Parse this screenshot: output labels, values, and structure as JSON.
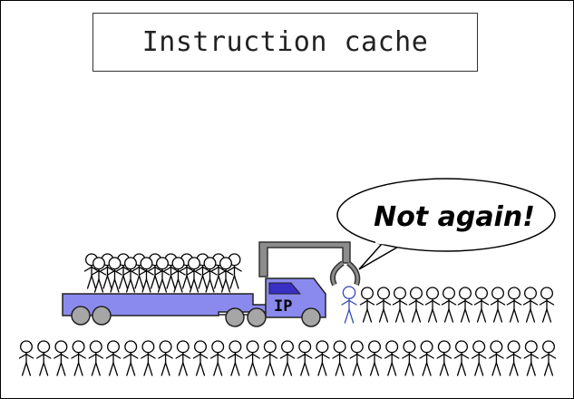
{
  "title": "Instruction cache",
  "speech_bubble": {
    "text": "Not again!"
  },
  "truck": {
    "label": "IP"
  },
  "colors": {
    "truck_body": "#8a8aee",
    "truck_window": "#3a2fc4",
    "crane": "#8c8c8c",
    "wheel": "#a6a6a6",
    "highlighted_figure": "#3848b8",
    "figure": "#000000"
  }
}
